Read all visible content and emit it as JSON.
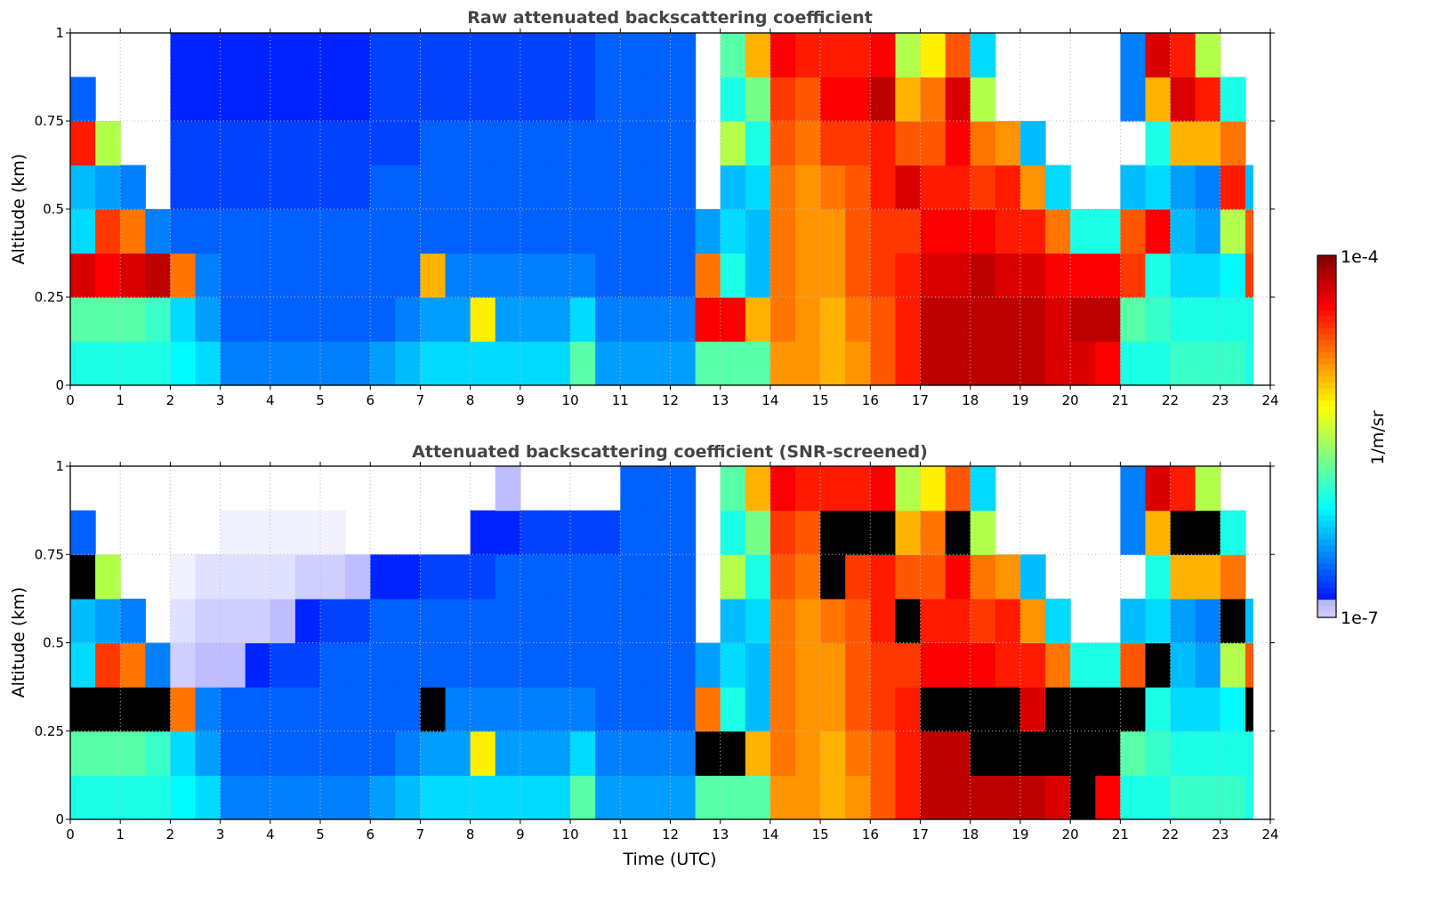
{
  "chart_data": [
    {
      "type": "heatmap",
      "title": "Raw attenuated backscattering coefficient",
      "xlabel": "",
      "ylabel": "Altitude (km)",
      "xlim": [
        0,
        24
      ],
      "ylim": [
        0,
        1
      ],
      "xticks": [
        0,
        1,
        2,
        3,
        4,
        5,
        6,
        7,
        8,
        9,
        10,
        11,
        12,
        13,
        14,
        15,
        16,
        17,
        18,
        19,
        20,
        21,
        22,
        23,
        24
      ],
      "yticks": [
        0,
        0.25,
        0.5,
        0.75,
        1
      ],
      "ytick_labels": [
        "0",
        "0.25",
        "0.5",
        "0.75",
        "1"
      ],
      "grid": true,
      "time_bin_hours": 0.5,
      "time_end": 23.65,
      "altitude_bins_km": [
        0.0625,
        0.1875,
        0.3125,
        0.4375,
        0.5625,
        0.6875,
        0.8125,
        0.9375
      ],
      "value_note": "log10 of coefficient (1/m/sr), bottom to top per time bin; null = no data",
      "columns": [
        [
          -6.0,
          -5.8,
          -4.3,
          -6.2,
          -6.3,
          -4.5,
          -6.6,
          null
        ],
        [
          -6.0,
          -5.8,
          -4.4,
          -4.6,
          -6.4,
          -5.5,
          null,
          null
        ],
        [
          -6.0,
          -5.8,
          -4.3,
          -4.8,
          -6.5,
          null,
          null,
          null
        ],
        [
          -6.0,
          -5.9,
          -4.2,
          -6.5,
          null,
          null,
          null,
          null
        ],
        [
          -6.1,
          -6.2,
          -4.8,
          -6.6,
          -6.7,
          -6.7,
          -6.8,
          -6.8
        ],
        [
          -6.2,
          -6.4,
          -6.5,
          -6.6,
          -6.7,
          -6.7,
          -6.8,
          -6.8
        ],
        [
          -6.5,
          -6.6,
          -6.6,
          -6.6,
          -6.7,
          -6.7,
          -6.8,
          -6.8
        ],
        [
          -6.5,
          -6.6,
          -6.6,
          -6.6,
          -6.7,
          -6.7,
          -6.8,
          -6.8
        ],
        [
          -6.5,
          -6.6,
          -6.6,
          -6.6,
          -6.7,
          -6.7,
          -6.8,
          -6.8
        ],
        [
          -6.5,
          -6.6,
          -6.6,
          -6.6,
          -6.7,
          -6.7,
          -6.8,
          -6.8
        ],
        [
          -6.5,
          -6.6,
          -6.6,
          -6.6,
          -6.7,
          -6.7,
          -6.8,
          -6.8
        ],
        [
          -6.5,
          -6.6,
          -6.6,
          -6.6,
          -6.7,
          -6.7,
          -6.8,
          -6.8
        ],
        [
          -6.4,
          -6.6,
          -6.6,
          -6.6,
          -6.6,
          -6.7,
          -6.7,
          -6.7
        ],
        [
          -6.3,
          -6.5,
          -6.6,
          -6.6,
          -6.6,
          -6.7,
          -6.7,
          -6.7
        ],
        [
          -6.2,
          -6.4,
          -5.0,
          -6.6,
          -6.6,
          -6.6,
          -6.7,
          -6.7
        ],
        [
          -6.2,
          -6.4,
          -6.5,
          -6.6,
          -6.6,
          -6.6,
          -6.7,
          -6.7
        ],
        [
          -6.2,
          -5.2,
          -6.5,
          -6.6,
          -6.6,
          -6.6,
          -6.7,
          -6.7
        ],
        [
          -6.2,
          -6.4,
          -6.5,
          -6.6,
          -6.6,
          -6.6,
          -6.7,
          -6.7
        ],
        [
          -6.2,
          -6.4,
          -6.5,
          -6.6,
          -6.6,
          -6.6,
          -6.7,
          -6.7
        ],
        [
          -6.2,
          -6.4,
          -6.5,
          -6.6,
          -6.6,
          -6.6,
          -6.7,
          -6.7
        ],
        [
          -5.8,
          -6.2,
          -6.5,
          -6.6,
          -6.6,
          -6.6,
          -6.7,
          -6.7
        ],
        [
          -6.4,
          -6.5,
          -6.6,
          -6.6,
          -6.6,
          -6.6,
          -6.6,
          -6.6
        ],
        [
          -6.4,
          -6.5,
          -6.6,
          -6.6,
          -6.6,
          -6.6,
          -6.6,
          -6.6
        ],
        [
          -6.4,
          -6.5,
          -6.6,
          -6.6,
          -6.6,
          -6.6,
          -6.6,
          -6.6
        ],
        [
          -6.4,
          -6.5,
          -6.6,
          -6.6,
          -6.6,
          -6.6,
          -6.6,
          -6.6
        ],
        [
          -5.8,
          -4.4,
          -4.8,
          -6.4,
          null,
          null,
          null,
          null
        ],
        [
          -5.8,
          -4.4,
          -6.0,
          -6.2,
          -6.3,
          -5.5,
          -6.0,
          -5.8
        ],
        [
          -5.8,
          -5.0,
          -6.3,
          -6.3,
          -6.2,
          -6.0,
          -5.7,
          -5.0
        ],
        [
          -4.9,
          -4.8,
          -4.8,
          -4.8,
          -4.8,
          -4.7,
          -4.6,
          -4.4
        ],
        [
          -4.9,
          -4.9,
          -4.9,
          -4.9,
          -4.9,
          -4.8,
          -4.7,
          -4.5
        ],
        [
          -5.0,
          -5.0,
          -4.9,
          -4.9,
          -4.8,
          -4.6,
          -4.4,
          -4.5
        ],
        [
          -4.9,
          -4.8,
          -4.7,
          -4.7,
          -4.7,
          -4.6,
          -4.4,
          -4.5
        ],
        [
          -4.7,
          -4.7,
          -4.6,
          -4.6,
          -4.5,
          -4.5,
          -4.2,
          -4.4
        ],
        [
          -4.5,
          -4.5,
          -4.5,
          -4.6,
          -4.3,
          -4.7,
          -5.0,
          -5.5
        ],
        [
          -4.2,
          -4.2,
          -4.3,
          -4.4,
          -4.5,
          -4.7,
          -4.8,
          -5.2
        ],
        [
          -4.2,
          -4.2,
          -4.3,
          -4.4,
          -4.5,
          -4.4,
          -4.3,
          -4.7
        ],
        [
          -4.2,
          -4.2,
          -4.2,
          -4.4,
          -4.6,
          -4.8,
          -5.5,
          -6.2
        ],
        [
          -4.2,
          -4.2,
          -4.3,
          -4.5,
          -4.5,
          -4.9,
          null,
          null
        ],
        [
          -4.2,
          -4.2,
          -4.3,
          -4.5,
          -4.9,
          -6.3,
          null,
          null
        ],
        [
          -4.3,
          -4.3,
          -4.4,
          -4.8,
          -6.2,
          null,
          null,
          null
        ],
        [
          -4.3,
          -4.2,
          -4.4,
          -6.0,
          null,
          null,
          null,
          null
        ],
        [
          -4.4,
          -4.2,
          -4.4,
          -6.0,
          null,
          null,
          null,
          null
        ],
        [
          -6.0,
          -5.8,
          -4.6,
          -4.7,
          -6.3,
          null,
          -6.5,
          -6.5
        ],
        [
          -6.0,
          -5.9,
          -6.0,
          -4.4,
          -6.2,
          -6.0,
          -5.0,
          -4.3
        ],
        [
          -5.9,
          -6.0,
          -6.2,
          -6.3,
          -6.4,
          -5.0,
          -4.3,
          -4.5
        ],
        [
          -5.9,
          -6.0,
          -6.2,
          -6.4,
          -6.5,
          -5.0,
          -4.5,
          -5.5
        ],
        [
          -5.9,
          -6.0,
          -6.1,
          -5.5,
          -4.5,
          -4.8,
          -6.0,
          null
        ],
        [
          -6.0,
          -6.0,
          -4.6,
          -4.7,
          -6.3,
          null,
          null,
          null
        ]
      ]
    },
    {
      "type": "heatmap",
      "title": "Attenuated backscattering coefficient (SNR-screened)",
      "xlabel": "Time (UTC)",
      "ylabel": "Altitude (km)",
      "xlim": [
        0,
        24
      ],
      "ylim": [
        0,
        1
      ],
      "xticks": [
        0,
        1,
        2,
        3,
        4,
        5,
        6,
        7,
        8,
        9,
        10,
        11,
        12,
        13,
        14,
        15,
        16,
        17,
        18,
        19,
        20,
        21,
        22,
        23,
        24
      ],
      "yticks": [
        0,
        0.25,
        0.5,
        0.75,
        1
      ],
      "ytick_labels": [
        "0",
        "0.25",
        "0.5",
        "0.75",
        "1"
      ],
      "grid": true,
      "time_bin_hours": 0.5,
      "time_end": 23.65,
      "altitude_bins_km": [
        0.0625,
        0.1875,
        0.3125,
        0.4375,
        0.5625,
        0.6875,
        0.8125,
        0.9375
      ],
      "value_note": "log10 of coefficient (1/m/sr); values above -4 shown black; null = screened out",
      "columns": [
        [
          -6.0,
          -5.8,
          -3.9,
          -6.2,
          -6.3,
          -3.9,
          -6.6,
          null
        ],
        [
          -6.0,
          -5.8,
          -3.9,
          -4.6,
          -6.4,
          -5.5,
          null,
          null
        ],
        [
          -6.0,
          -5.8,
          -3.9,
          -4.8,
          -6.5,
          null,
          null,
          null
        ],
        [
          -6.0,
          -5.9,
          -3.9,
          -6.5,
          null,
          null,
          null,
          null
        ],
        [
          -6.1,
          -6.2,
          -4.8,
          -7.0,
          -7.1,
          -7.2,
          null,
          null
        ],
        [
          -6.2,
          -6.4,
          -6.5,
          -6.9,
          -7.0,
          -7.1,
          null,
          null
        ],
        [
          -6.5,
          -6.6,
          -6.6,
          -6.9,
          -7.0,
          -7.1,
          -7.2,
          null
        ],
        [
          -6.5,
          -6.6,
          -6.6,
          -6.8,
          -7.0,
          -7.1,
          -7.2,
          null
        ],
        [
          -6.5,
          -6.6,
          -6.6,
          -6.7,
          -6.9,
          -7.1,
          -7.2,
          null
        ],
        [
          -6.5,
          -6.6,
          -6.6,
          -6.7,
          -6.8,
          -7.0,
          -7.2,
          null
        ],
        [
          -6.5,
          -6.6,
          -6.6,
          -6.6,
          -6.7,
          -7.0,
          -7.2,
          null
        ],
        [
          -6.5,
          -6.6,
          -6.6,
          -6.6,
          -6.7,
          -6.9,
          null,
          null
        ],
        [
          -6.4,
          -6.6,
          -6.6,
          -6.6,
          -6.6,
          -6.8,
          null,
          null
        ],
        [
          -6.3,
          -6.5,
          -6.6,
          -6.6,
          -6.6,
          -6.8,
          null,
          null
        ],
        [
          -6.2,
          -6.4,
          -3.9,
          -6.6,
          -6.6,
          -6.7,
          null,
          null
        ],
        [
          -6.2,
          -6.4,
          -6.5,
          -6.6,
          -6.6,
          -6.7,
          null,
          null
        ],
        [
          -6.2,
          -5.2,
          -6.5,
          -6.6,
          -6.6,
          -6.7,
          -6.8,
          null
        ],
        [
          -6.2,
          -6.4,
          -6.5,
          -6.6,
          -6.6,
          -6.6,
          -6.8,
          -6.9
        ],
        [
          -6.2,
          -6.4,
          -6.5,
          -6.6,
          -6.6,
          -6.6,
          -6.7,
          null
        ],
        [
          -6.2,
          -6.4,
          -6.5,
          -6.6,
          -6.6,
          -6.6,
          -6.7,
          null
        ],
        [
          -5.8,
          -6.2,
          -6.5,
          -6.6,
          -6.6,
          -6.6,
          -6.7,
          null
        ],
        [
          -6.4,
          -6.5,
          -6.6,
          -6.6,
          -6.6,
          -6.6,
          -6.7,
          null
        ],
        [
          -6.4,
          -6.5,
          -6.6,
          -6.6,
          -6.6,
          -6.6,
          -6.6,
          -6.6
        ],
        [
          -6.4,
          -6.5,
          -6.6,
          -6.6,
          -6.6,
          -6.6,
          -6.6,
          -6.6
        ],
        [
          -6.4,
          -6.5,
          -6.6,
          -6.6,
          -6.6,
          -6.6,
          -6.6,
          -6.6
        ],
        [
          -5.8,
          -3.9,
          -4.8,
          -6.4,
          null,
          null,
          null,
          null
        ],
        [
          -5.8,
          -3.9,
          -6.0,
          -6.2,
          -6.3,
          -5.5,
          -6.0,
          -5.8
        ],
        [
          -5.8,
          -5.0,
          -6.3,
          -6.3,
          -6.2,
          -6.0,
          -5.7,
          -5.0
        ],
        [
          -4.9,
          -4.8,
          -4.8,
          -4.8,
          -4.8,
          -4.7,
          -4.6,
          -4.4
        ],
        [
          -4.9,
          -4.9,
          -4.9,
          -4.9,
          -4.9,
          -4.8,
          -4.7,
          -4.5
        ],
        [
          -5.0,
          -5.0,
          -4.9,
          -4.9,
          -4.8,
          -3.9,
          -3.9,
          -4.5
        ],
        [
          -4.9,
          -4.8,
          -4.7,
          -4.7,
          -4.7,
          -4.6,
          -3.9,
          -4.5
        ],
        [
          -4.7,
          -4.7,
          -4.6,
          -4.6,
          -4.5,
          -4.5,
          -3.9,
          -4.4
        ],
        [
          -4.5,
          -4.5,
          -4.5,
          -4.6,
          -3.9,
          -4.7,
          -5.0,
          -5.5
        ],
        [
          -4.2,
          -4.2,
          -3.9,
          -4.4,
          -4.5,
          -4.7,
          -4.8,
          -5.2
        ],
        [
          -4.2,
          -4.2,
          -3.9,
          -4.4,
          -4.5,
          -4.4,
          -3.9,
          -4.7
        ],
        [
          -4.2,
          -3.9,
          -3.9,
          -4.4,
          -4.6,
          -4.8,
          -5.5,
          -6.2
        ],
        [
          -4.2,
          -3.9,
          -3.9,
          -4.5,
          -4.5,
          -4.9,
          null,
          null
        ],
        [
          -4.2,
          -3.9,
          -4.3,
          -4.5,
          -4.9,
          -6.3,
          null,
          null
        ],
        [
          -4.3,
          -3.9,
          -3.9,
          -4.8,
          -6.2,
          null,
          null,
          null
        ],
        [
          -3.9,
          -3.9,
          -3.9,
          -6.0,
          null,
          null,
          null,
          null
        ],
        [
          -4.4,
          -3.9,
          -3.9,
          -6.0,
          null,
          null,
          null,
          null
        ],
        [
          -6.0,
          -5.8,
          -3.9,
          -4.7,
          -6.3,
          null,
          -6.5,
          -6.5
        ],
        [
          -6.0,
          -5.9,
          -6.0,
          -3.9,
          -6.2,
          -6.0,
          -5.0,
          -4.3
        ],
        [
          -5.9,
          -6.0,
          -6.2,
          -6.3,
          -6.4,
          -5.0,
          -3.9,
          -4.5
        ],
        [
          -5.9,
          -6.0,
          -6.2,
          -6.4,
          -6.5,
          -5.0,
          -3.9,
          -5.5
        ],
        [
          -5.9,
          -6.0,
          -6.1,
          -5.5,
          -3.9,
          -4.8,
          -6.0,
          null
        ],
        [
          -6.0,
          -6.0,
          -3.9,
          -4.7,
          -6.3,
          null,
          null,
          null
        ]
      ]
    }
  ],
  "colorbar": {
    "label": "1/m/sr",
    "min_label": "1e-7",
    "max_label": "1e-4",
    "range_log10": [
      -7,
      -4
    ],
    "colormap": "jet"
  }
}
